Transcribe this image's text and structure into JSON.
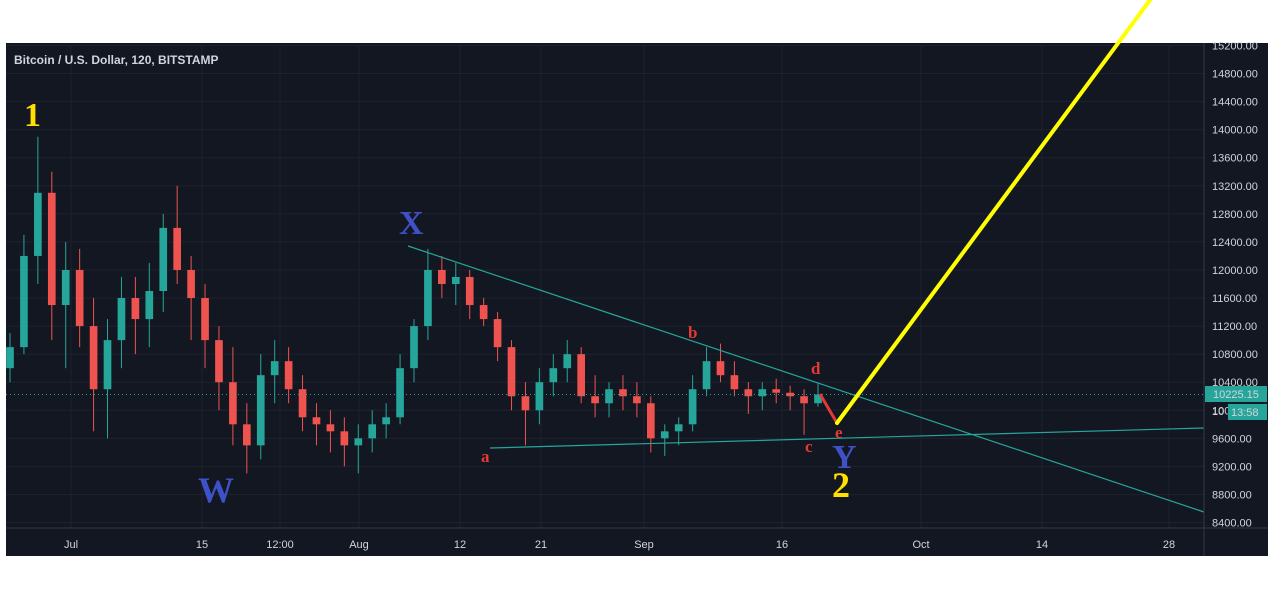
{
  "chart_data": {
    "type": "candlestick",
    "title": "Bitcoin / U.S. Dollar, 120, BITSTAMP",
    "x_tick_labels": [
      "Jul",
      "15",
      "12:00",
      "Aug",
      "12",
      "21",
      "Sep",
      "16",
      "Oct",
      "14",
      "28"
    ],
    "y_tick_labels": [
      "15200.00",
      "14800.00",
      "14400.00",
      "14000.00",
      "13600.00",
      "13200.00",
      "12800.00",
      "12400.00",
      "12000.00",
      "11600.00",
      "11200.00",
      "10800.00",
      "10400.00",
      "10000.00",
      "9600.00",
      "9200.00",
      "8800.00",
      "8400.00"
    ],
    "ylim": [
      8300,
      15200
    ],
    "current_price_label": "10225.15",
    "current_price": 10225.15,
    "countdown_label": "13:58",
    "series": [
      {
        "values": [
          [
            10600,
            11100,
            10400,
            10900
          ],
          [
            10900,
            12500,
            10800,
            12200
          ],
          [
            12200,
            13900,
            11800,
            13100
          ],
          [
            13100,
            13400,
            11000,
            11500
          ],
          [
            11500,
            12400,
            10600,
            12000
          ],
          [
            12000,
            12300,
            10900,
            11200
          ],
          [
            11200,
            11600,
            9700,
            10300
          ],
          [
            10300,
            11300,
            9600,
            11000
          ],
          [
            11000,
            11900,
            10600,
            11600
          ],
          [
            11600,
            11900,
            10800,
            11300
          ],
          [
            11300,
            12100,
            10900,
            11700
          ],
          [
            11700,
            12800,
            11400,
            12600
          ],
          [
            12600,
            13200,
            11800,
            12000
          ],
          [
            12000,
            12200,
            11000,
            11600
          ],
          [
            11600,
            11800,
            10600,
            11000
          ],
          [
            11000,
            11200,
            10000,
            10400
          ],
          [
            10400,
            10900,
            9500,
            9800
          ],
          [
            9800,
            10100,
            9100,
            9500
          ],
          [
            9500,
            10800,
            9300,
            10500
          ],
          [
            10500,
            11000,
            10100,
            10700
          ],
          [
            10700,
            10900,
            10100,
            10300
          ],
          [
            10300,
            10500,
            9700,
            9900
          ],
          [
            9900,
            10100,
            9500,
            9800
          ],
          [
            9800,
            10000,
            9400,
            9700
          ],
          [
            9700,
            9900,
            9200,
            9500
          ],
          [
            9500,
            9800,
            9100,
            9600
          ],
          [
            9600,
            10000,
            9400,
            9800
          ],
          [
            9800,
            10100,
            9600,
            9900
          ],
          [
            9900,
            10800,
            9800,
            10600
          ],
          [
            10600,
            11300,
            10400,
            11200
          ],
          [
            11200,
            12300,
            11000,
            12000
          ],
          [
            12000,
            12200,
            11600,
            11800
          ],
          [
            11800,
            12100,
            11500,
            11900
          ],
          [
            11900,
            12000,
            11300,
            11500
          ],
          [
            11500,
            11600,
            11200,
            11300
          ],
          [
            11300,
            11400,
            10700,
            10900
          ],
          [
            10900,
            11000,
            10000,
            10200
          ],
          [
            10200,
            10400,
            9500,
            10000
          ],
          [
            10000,
            10600,
            9800,
            10400
          ],
          [
            10400,
            10800,
            10200,
            10600
          ],
          [
            10600,
            11000,
            10400,
            10800
          ],
          [
            10800,
            10900,
            10100,
            10200
          ],
          [
            10200,
            10500,
            9900,
            10100
          ],
          [
            10100,
            10400,
            9900,
            10300
          ],
          [
            10300,
            10500,
            10000,
            10200
          ],
          [
            10200,
            10400,
            9900,
            10100
          ],
          [
            10100,
            10200,
            9400,
            9600
          ],
          [
            9600,
            9800,
            9350,
            9700
          ],
          [
            9700,
            9900,
            9500,
            9800
          ],
          [
            9800,
            10500,
            9700,
            10300
          ],
          [
            10300,
            10900,
            10200,
            10700
          ],
          [
            10700,
            10950,
            10400,
            10500
          ],
          [
            10500,
            10700,
            10200,
            10300
          ],
          [
            10300,
            10400,
            9950,
            10200
          ],
          [
            10200,
            10400,
            10000,
            10300
          ],
          [
            10300,
            10450,
            10100,
            10250
          ],
          [
            10250,
            10350,
            10000,
            10200
          ],
          [
            10200,
            10300,
            9650,
            10100
          ],
          [
            10100,
            10380,
            10050,
            10225
          ]
        ]
      }
    ],
    "annotations": {
      "wave_1": "1",
      "wave_w": "W",
      "wave_x": "X",
      "wave_y": "Y",
      "wave_2": "2",
      "sub_a": "a",
      "sub_b": "b",
      "sub_c": "c",
      "sub_d": "d",
      "sub_e": "e"
    },
    "colors": {
      "background": "#131722",
      "up": "#26a69a",
      "down": "#ef5350",
      "projection": "#ffff00",
      "trendline": "#26a69a",
      "price_badge": "#26a69a",
      "label_yellow": "#ffe000",
      "label_blue": "#3f51c8",
      "label_red": "#e53935"
    }
  }
}
